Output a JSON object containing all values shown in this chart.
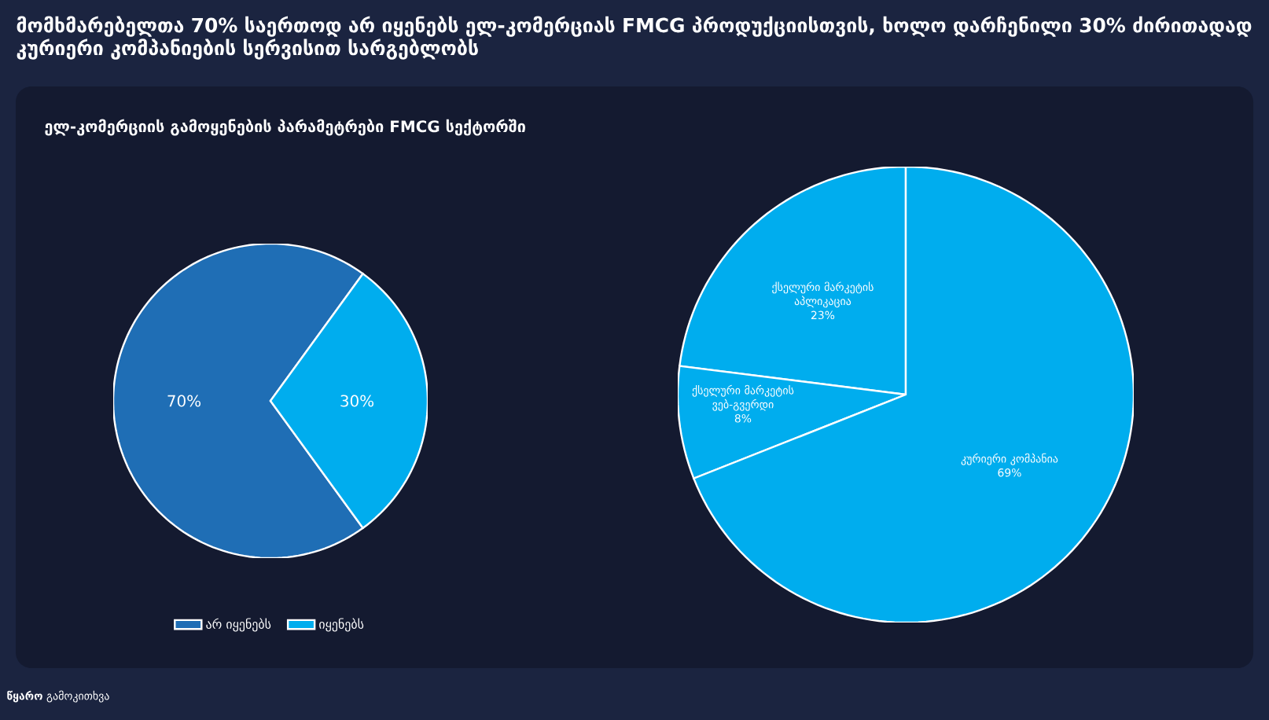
{
  "chart_data": [
    {
      "type": "pie",
      "title": "მომხმარებელთა 70% საერთოდ არ იყენებს ელ-კომერციას FMCG პროდუქციისთვის, ხოლო დარჩენილი 30% ძირითადად კურიერი კომპანიების სერვისით სარგებლობს",
      "subtitle": "ელ-კომერციის გამოყენების პარამეტრები FMCG სექტორში",
      "annotations": [
        "**წყარო** გამოკითხვა"
      ],
      "categories": [
        "არ იყენებს",
        "იყენებს"
      ],
      "values": [
        70,
        30
      ],
      "colors": [
        "#1f6eb5",
        "#00adee"
      ],
      "value_labels": [
        "70%",
        "30%"
      ],
      "legend": "bottom"
    },
    {
      "type": "pie",
      "categories": [
        "ქსელური მარკეტის აპლიკაცია",
        "ქსელური მარკეტის ვებ-გვერდი",
        "კურიერი კომპანია"
      ],
      "values": [
        23,
        8,
        69
      ],
      "colors": [
        "#00adee",
        "#00adee",
        "#00adee"
      ],
      "value_labels": [
        "23%",
        "8%",
        "69%"
      ]
    }
  ]
}
